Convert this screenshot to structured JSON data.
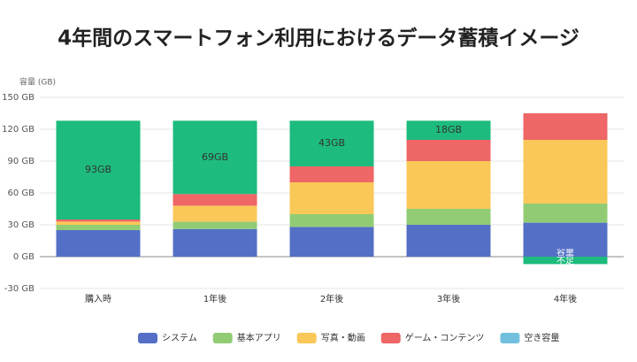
{
  "chart_data": {
    "type": "stacked_bar",
    "title": "4年間のスマートフォン利用におけるデータ蓄積イメージ",
    "y_axis_label": "容量 (GB)",
    "categories": [
      "購入時",
      "1年後",
      "2年後",
      "3年後",
      "4年後"
    ],
    "series": [
      {
        "name": "システム",
        "color": "#5470c6",
        "values": [
          25,
          26,
          28,
          30,
          32
        ]
      },
      {
        "name": "基本アプリ",
        "color": "#91cc75",
        "values": [
          5,
          7,
          12,
          15,
          18
        ]
      },
      {
        "name": "写真・動画",
        "color": "#fac858",
        "values": [
          3,
          15,
          30,
          45,
          60
        ]
      },
      {
        "name": "ゲーム・コンテンツ",
        "color": "#ee6666",
        "values": [
          2,
          11,
          15,
          20,
          25
        ]
      },
      {
        "name": "空き容量",
        "color": "#1dbb7d",
        "legend_color": "#73c0de",
        "values": [
          93,
          69,
          43,
          18,
          -7
        ],
        "value_labels": [
          "93GB",
          "69GB",
          "43GB",
          "18GB",
          "容量不足"
        ]
      }
    ],
    "ylim": [
      -30,
      150
    ],
    "yticks": [
      {
        "value": -30,
        "label": "-30 GB"
      },
      {
        "value": 0,
        "label": "0 GB"
      },
      {
        "value": 30,
        "label": "30 GB"
      },
      {
        "value": 60,
        "label": "60 GB"
      },
      {
        "value": 90,
        "label": "90 GB"
      },
      {
        "value": 120,
        "label": "120 GB"
      },
      {
        "value": 150,
        "label": "150 GB"
      }
    ],
    "grid": true,
    "legend_position": "bottom"
  }
}
